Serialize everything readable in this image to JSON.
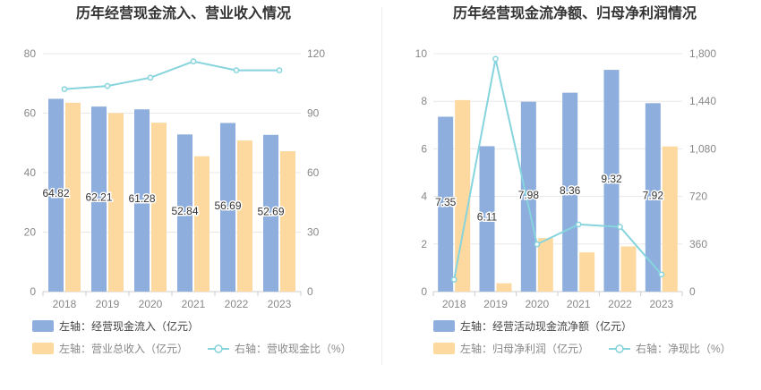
{
  "colors": {
    "bar_left": "#8eaedd",
    "bar_right": "#fdd9a0",
    "line": "#86d4dd",
    "axis_text": "#888888",
    "grid": "#e8e8e8",
    "title": "#333333",
    "label": "#333333"
  },
  "chart_data": [
    {
      "type": "bar",
      "title": "历年经营现金流入、营业收入情况",
      "categories": [
        "2018",
        "2019",
        "2020",
        "2021",
        "2022",
        "2023"
      ],
      "y_left": {
        "lim": [
          0,
          80
        ],
        "ticks": [
          "0",
          "20",
          "40",
          "60",
          "80"
        ],
        "tick_values": [
          0,
          20,
          40,
          60,
          80
        ]
      },
      "y_right": {
        "lim": [
          0,
          120
        ],
        "ticks": [
          "0",
          "30",
          "60",
          "90",
          "120"
        ],
        "tick_values": [
          0,
          30,
          60,
          90,
          120
        ]
      },
      "series": [
        {
          "name": "左轴：经营现金流入（亿元）",
          "type": "bar",
          "axis": "left",
          "values": [
            64.82,
            62.21,
            61.28,
            52.84,
            56.69,
            52.69
          ],
          "labels": [
            "64.82",
            "62.21",
            "61.28",
            "52.84",
            "56.69",
            "52.69"
          ]
        },
        {
          "name": "左轴：营业总收入（亿元）",
          "type": "bar",
          "axis": "left",
          "values": [
            63.5,
            60.0,
            56.8,
            45.5,
            50.8,
            47.2
          ]
        },
        {
          "name": "右轴：营收现金比（%）",
          "type": "line",
          "axis": "right",
          "values": [
            102.1,
            103.7,
            107.9,
            116.1,
            111.6,
            111.6
          ]
        }
      ],
      "legend_position": "bottom"
    },
    {
      "type": "bar",
      "title": "历年经营现金流净额、归母净利润情况",
      "categories": [
        "2018",
        "2019",
        "2020",
        "2021",
        "2022",
        "2023"
      ],
      "y_left": {
        "lim": [
          0,
          10
        ],
        "ticks": [
          "0",
          "2",
          "4",
          "6",
          "8",
          "10"
        ],
        "tick_values": [
          0,
          2,
          4,
          6,
          8,
          10
        ]
      },
      "y_right": {
        "lim": [
          0,
          1800
        ],
        "ticks": [
          "0",
          "360",
          "720",
          "1,080",
          "1,440",
          "1,800"
        ],
        "tick_values": [
          0,
          360,
          720,
          1080,
          1440,
          1800
        ]
      },
      "series": [
        {
          "name": "左轴：经营活动现金流净额（亿元）",
          "type": "bar",
          "axis": "left",
          "values": [
            7.35,
            6.11,
            7.98,
            8.36,
            9.32,
            7.92
          ],
          "labels": [
            "7.35",
            "6.11",
            "7.98",
            "8.36",
            "9.32",
            "7.92"
          ]
        },
        {
          "name": "左轴：归母净利润（亿元）",
          "type": "bar",
          "axis": "left",
          "values": [
            8.05,
            0.35,
            2.25,
            1.65,
            1.9,
            6.1
          ]
        },
        {
          "name": "右轴：净现比（%）",
          "type": "line",
          "axis": "right",
          "values": [
            91,
            1760,
            358,
            508,
            490,
            130
          ]
        }
      ],
      "legend_position": "bottom"
    }
  ]
}
